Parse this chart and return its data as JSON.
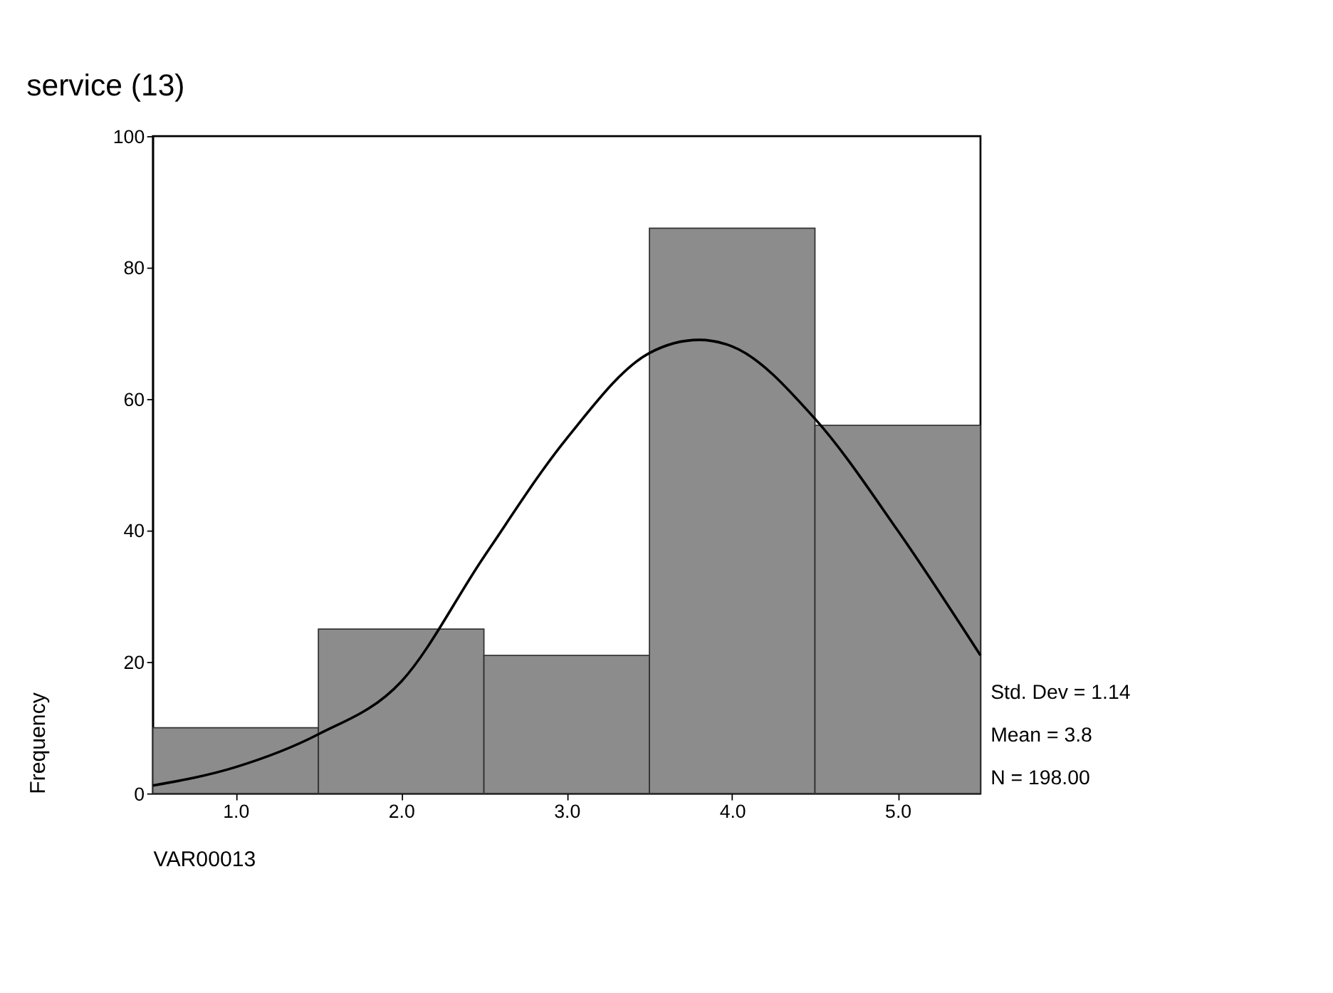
{
  "chart_data": {
    "type": "histogram",
    "title": "service (13)",
    "xlabel": "VAR00013",
    "ylabel": "Frequency",
    "bins": [
      0.5,
      1.5,
      2.5,
      3.5,
      4.5,
      5.5
    ],
    "values": [
      10,
      25,
      21,
      86,
      56
    ],
    "color": "#8c8c8c",
    "series": [
      {
        "type": "line",
        "color": "#000000",
        "x": [
          0.5,
          1.0,
          1.5,
          2.0,
          2.5,
          3.0,
          3.5,
          3.8,
          4.0,
          4.5,
          5.0,
          5.5
        ],
        "values": [
          1.2,
          4,
          9,
          17,
          36,
          54,
          67,
          69,
          68,
          57,
          40,
          21
        ]
      }
    ],
    "xlim": [
      0.5,
      5.5
    ],
    "xticks": [
      {
        "value": 1,
        "label": "1.0"
      },
      {
        "value": 2,
        "label": "2.0"
      },
      {
        "value": 3,
        "label": "3.0"
      },
      {
        "value": 4,
        "label": "4.0"
      },
      {
        "value": 5,
        "label": "5.0"
      }
    ],
    "ylim": [
      0,
      100
    ],
    "yticks": [
      0,
      20,
      40,
      60,
      80,
      100
    ],
    "grid": false,
    "annotations": [
      "Std. Dev = 1.14",
      "Mean = 3.8",
      "N = 198.00"
    ]
  }
}
